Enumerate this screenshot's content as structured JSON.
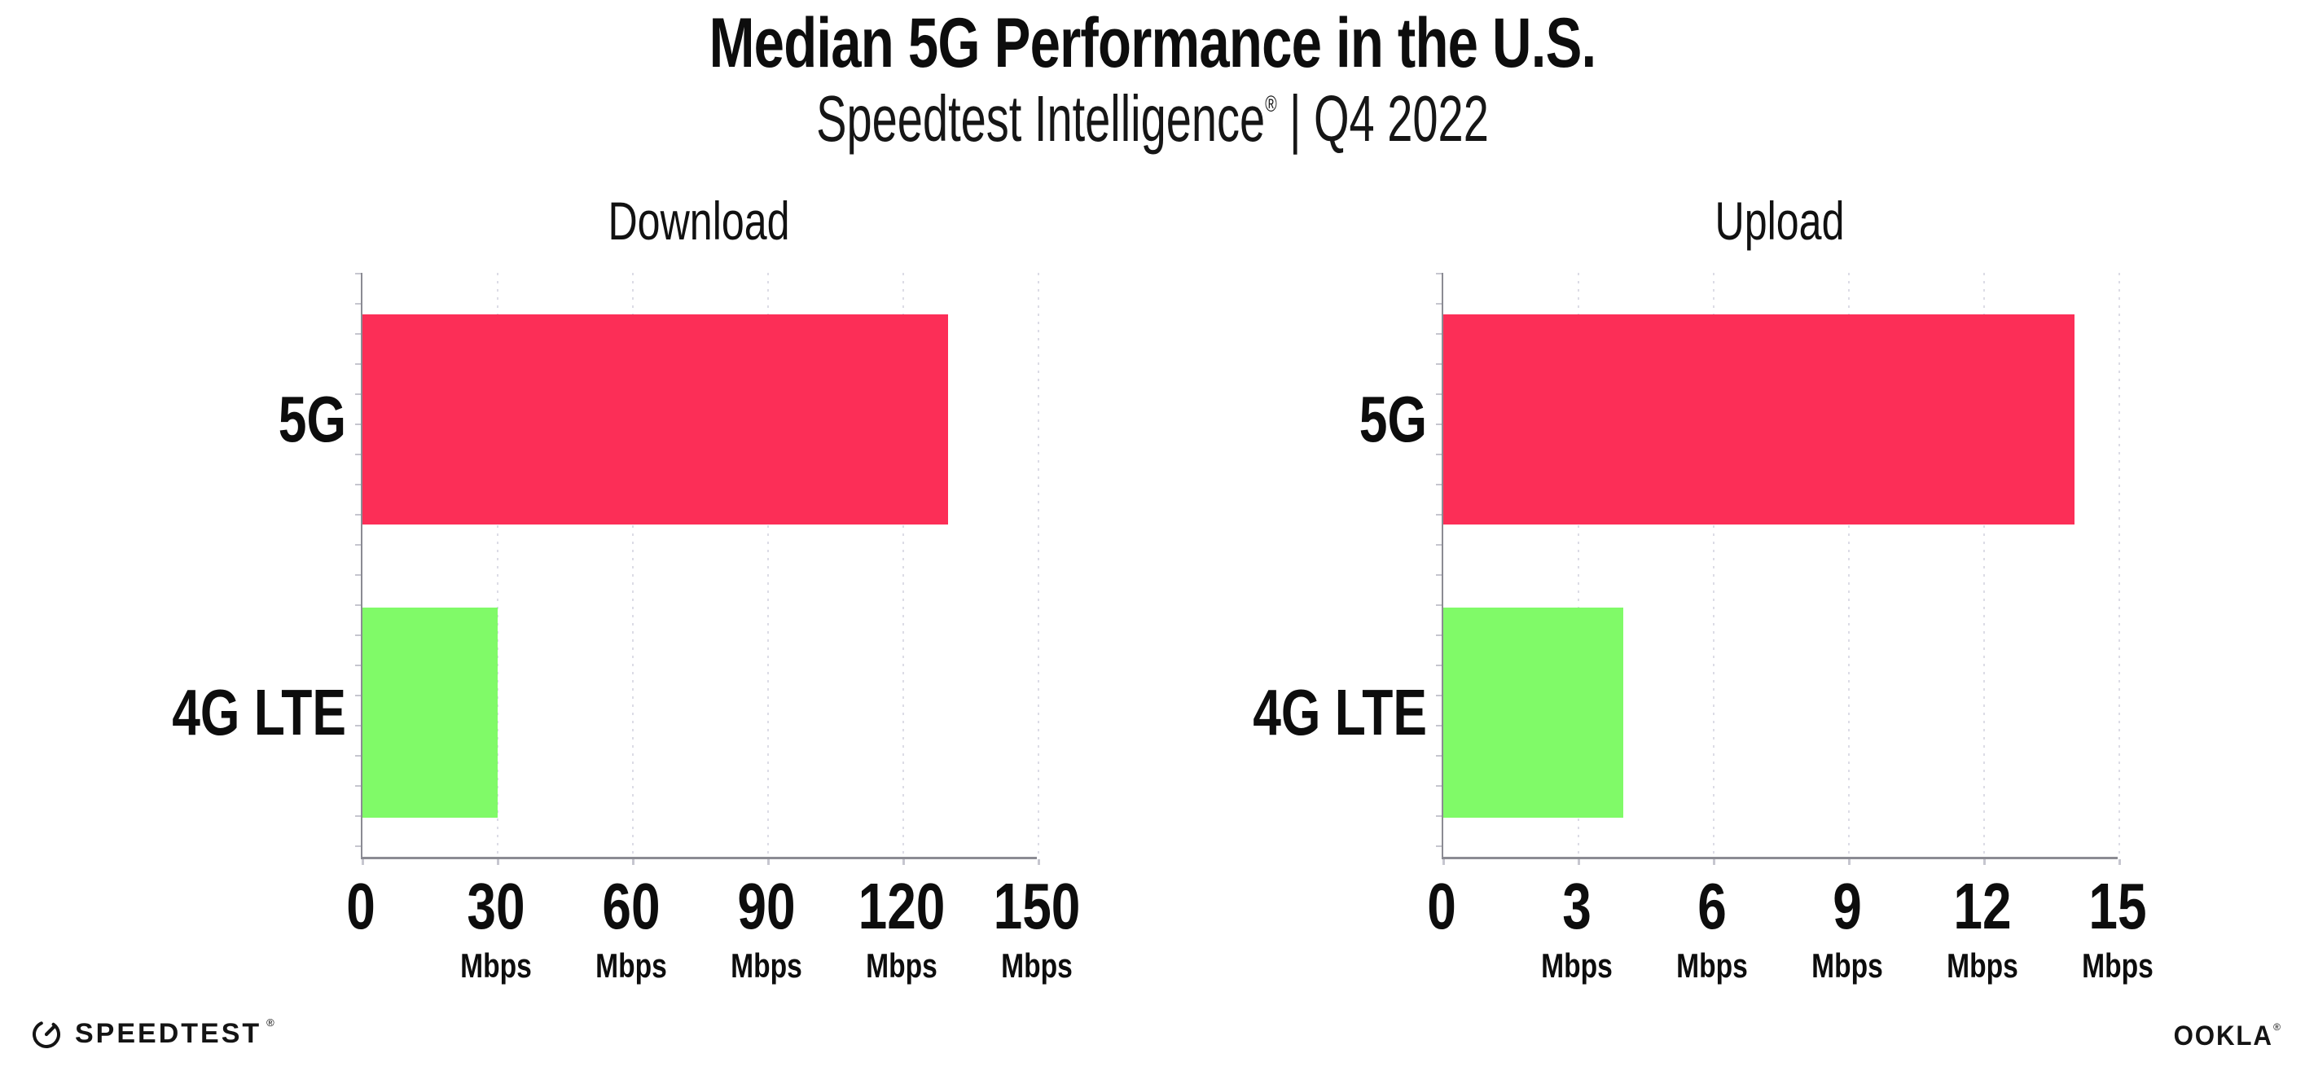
{
  "header": {
    "title": "Median 5G Performance in the U.S.",
    "subtitle_brand": "Speedtest Intelligence",
    "registered_mark": "®",
    "separator": "|",
    "period": "Q4 2022"
  },
  "chart_data": [
    {
      "type": "bar",
      "orientation": "horizontal",
      "title": "Download",
      "categories": [
        "5G",
        "4G LTE"
      ],
      "values": [
        130,
        30
      ],
      "unit": "Mbps",
      "xlim": [
        0,
        150
      ],
      "xticks": [
        0,
        30,
        60,
        90,
        120,
        150
      ],
      "grid": "dotted-vertical",
      "legend": "none",
      "bar_colors": [
        "#FC2E57",
        "#80FA68"
      ]
    },
    {
      "type": "bar",
      "orientation": "horizontal",
      "title": "Upload",
      "categories": [
        "5G",
        "4G LTE"
      ],
      "values": [
        14,
        4
      ],
      "unit": "Mbps",
      "xlim": [
        0,
        15
      ],
      "xticks": [
        0,
        3,
        6,
        9,
        12,
        15
      ],
      "grid": "dotted-vertical",
      "legend": "none",
      "bar_colors": [
        "#FC2E57",
        "#80FA68"
      ]
    }
  ],
  "colors": {
    "bar_5g": "#FC2E57",
    "bar_4g_lte": "#80FA68",
    "gridline": "#DCDCE6",
    "axis": "#8B8B93",
    "text": "#0D0D0D"
  },
  "footer": {
    "speedtest_label": "SPEEDTEST",
    "speedtest_mark": "®",
    "ookla_label": "OOKLA",
    "ookla_mark": "®"
  }
}
